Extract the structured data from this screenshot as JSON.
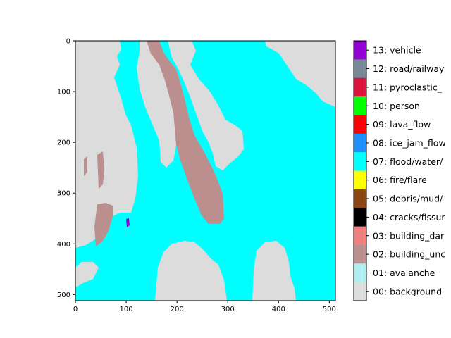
{
  "chart_data": {
    "type": "heatmap",
    "title": "",
    "xlabel": "",
    "ylabel": "",
    "xlim": [
      0,
      512
    ],
    "ylim": [
      512,
      0
    ],
    "x_ticks": [
      "0",
      "100",
      "200",
      "300",
      "400",
      "500"
    ],
    "y_ticks": [
      "0",
      "100",
      "200",
      "300",
      "400",
      "500"
    ],
    "grid": false,
    "legend_placement": "right colorbar",
    "legend": [
      {
        "label": "13: vehicle",
        "color": "#9400D3"
      },
      {
        "label": "12: road/railway",
        "color": "#778899"
      },
      {
        "label": "11: pyroclastic_",
        "color": "#DC143C"
      },
      {
        "label": "10: person",
        "color": "#00FF00"
      },
      {
        "label": "09: lava_flow",
        "color": "#FF0000"
      },
      {
        "label": "08: ice_jam_flow",
        "color": "#1E90FF"
      },
      {
        "label": "07: flood/water/",
        "color": "#00FFFF"
      },
      {
        "label": "06: fire/flare",
        "color": "#FFFF00"
      },
      {
        "label": "05: debris/mud/",
        "color": "#8B4513"
      },
      {
        "label": "04: cracks/fissur",
        "color": "#000000"
      },
      {
        "label": "03: building_dar",
        "color": "#F08080"
      },
      {
        "label": "02: building_unc",
        "color": "#BC8F8F"
      },
      {
        "label": "01: avalanche",
        "color": "#AFEEEE"
      },
      {
        "label": "00: background",
        "color": "#DCDCDC"
      }
    ]
  }
}
